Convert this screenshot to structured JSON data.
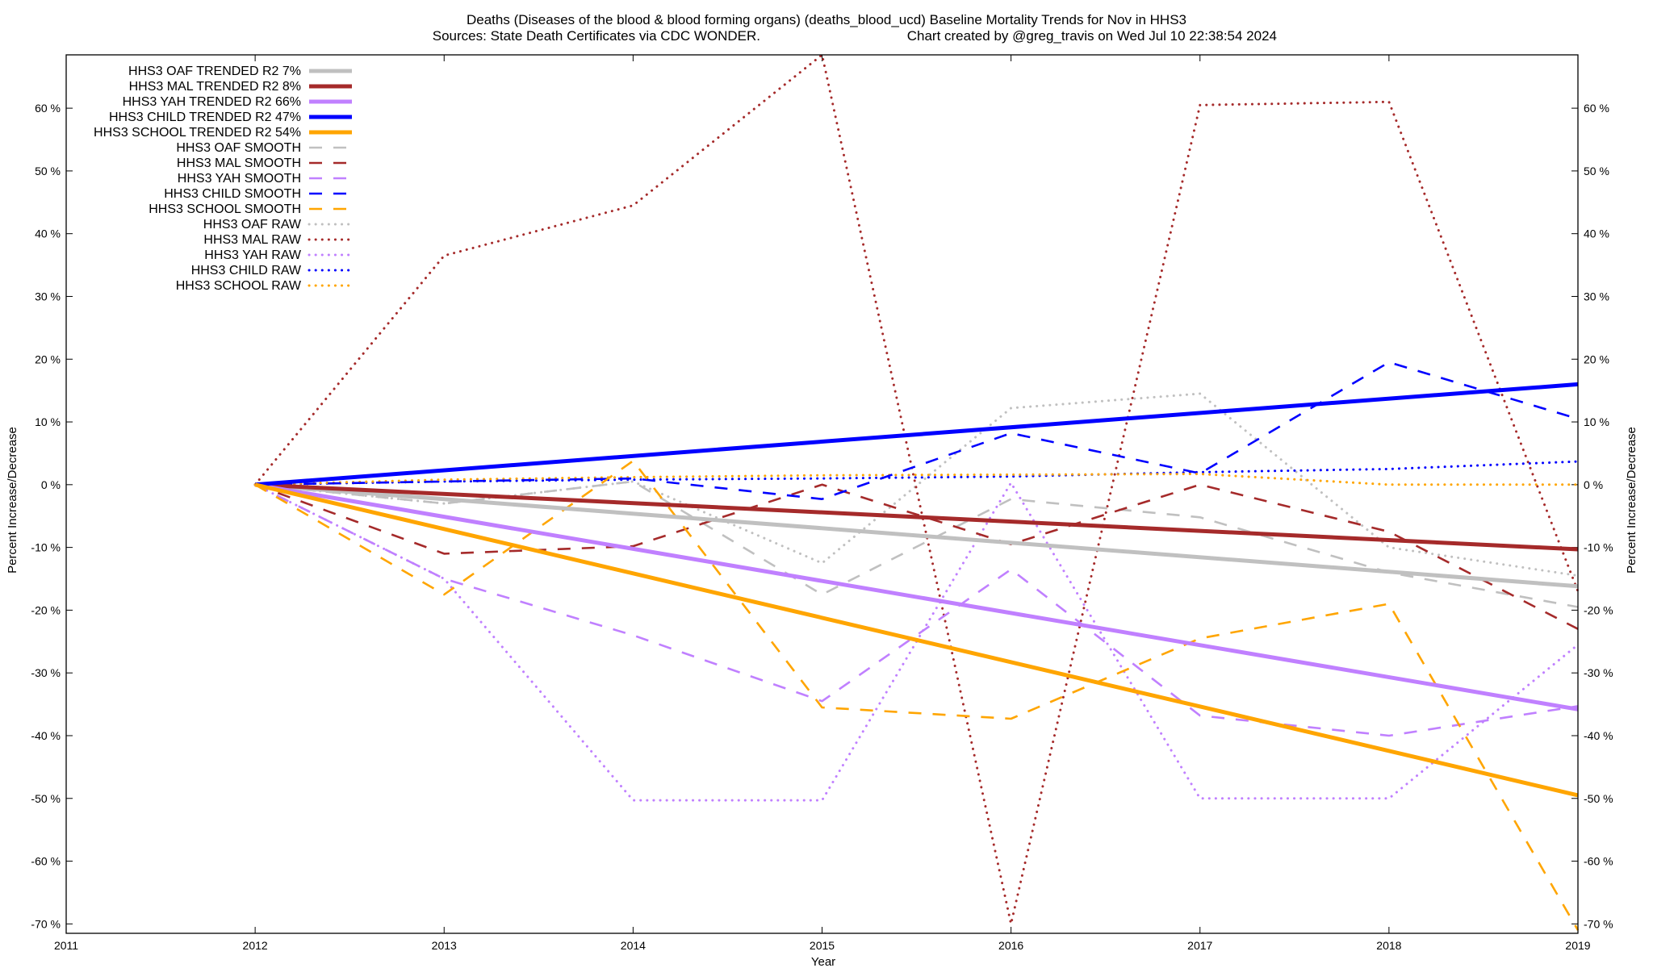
{
  "chart_data": {
    "type": "line",
    "title": "Deaths (Diseases of the blood & blood forming organs) (deaths_blood_ucd)  Baseline Mortality Trends for Nov in HHS3",
    "subtitle_left": "Sources: State Death Certificates via CDC WONDER.",
    "subtitle_right": "Chart created by @greg_travis on Wed Jul 10 22:38:54 2024",
    "xlabel": "Year",
    "ylabel_left": "Percent Increase/Decrease",
    "ylabel_right": "Percent Increase/Decrease",
    "xlim": [
      2011,
      2019
    ],
    "ylim": [
      -71.5,
      68.5
    ],
    "x_ticks": [
      "2011",
      "2012",
      "2013",
      "2014",
      "2015",
      "2016",
      "2017",
      "2018",
      "2019"
    ],
    "y_ticks": [
      "60 %",
      "50 %",
      "40 %",
      "30 %",
      "20 %",
      "10 %",
      "0 %",
      "-10 %",
      "-20 %",
      "-30 %",
      "-40 %",
      "-50 %",
      "-60 %",
      "-70 %"
    ],
    "y_tick_values": [
      60,
      50,
      40,
      30,
      20,
      10,
      0,
      -10,
      -20,
      -30,
      -40,
      -50,
      -60,
      -70
    ],
    "grid": false,
    "legend_position": "top-left",
    "series": [
      {
        "name": "HHS3 OAF TRENDED R2  7%",
        "style": "trend",
        "color": "#c0c0c0",
        "x": [
          2012,
          2019
        ],
        "y": [
          0,
          -16.2
        ]
      },
      {
        "name": "HHS3 MAL TRENDED R2  8%",
        "style": "trend",
        "color": "#a52a2a",
        "x": [
          2012,
          2019
        ],
        "y": [
          0,
          -10.3
        ]
      },
      {
        "name": "HHS3 YAH TRENDED R2  66%",
        "style": "trend",
        "color": "#c080ff",
        "x": [
          2012,
          2019
        ],
        "y": [
          0,
          -35.8
        ]
      },
      {
        "name": "HHS3 CHILD TRENDED R2  47%",
        "style": "trend",
        "color": "#0000ff",
        "x": [
          2012,
          2019
        ],
        "y": [
          0,
          16
        ]
      },
      {
        "name": "HHS3 SCHOOL TRENDED R2  54%",
        "style": "trend",
        "color": "#ffa500",
        "x": [
          2012,
          2019
        ],
        "y": [
          0,
          -49.5
        ]
      },
      {
        "name": "HHS3 OAF SMOOTH",
        "style": "smooth",
        "color": "#c0c0c0",
        "x": [
          2012,
          2013,
          2014,
          2015,
          2016,
          2017,
          2018,
          2019
        ],
        "y": [
          0,
          -3,
          0.5,
          -17.5,
          -2.3,
          -5.2,
          -14,
          -19.5
        ]
      },
      {
        "name": "HHS3 MAL SMOOTH",
        "style": "smooth",
        "color": "#a52a2a",
        "x": [
          2012,
          2013,
          2014,
          2015,
          2016,
          2017,
          2018,
          2019
        ],
        "y": [
          0,
          -11,
          -9.8,
          0,
          -9.5,
          0,
          -7.5,
          -23
        ]
      },
      {
        "name": "HHS3 YAH SMOOTH",
        "style": "smooth",
        "color": "#c080ff",
        "x": [
          2012,
          2013,
          2014,
          2015,
          2016,
          2017,
          2018,
          2019
        ],
        "y": [
          0,
          -15,
          -24,
          -34.5,
          -13.5,
          -36.8,
          -40,
          -35.3
        ]
      },
      {
        "name": "HHS3 CHILD SMOOTH",
        "style": "smooth",
        "color": "#0000ff",
        "x": [
          2012,
          2013,
          2014,
          2015,
          2016,
          2017,
          2018,
          2019
        ],
        "y": [
          0,
          0.5,
          1,
          -2.3,
          8.2,
          1.8,
          19.5,
          10.5
        ]
      },
      {
        "name": "HHS3 SCHOOL SMOOTH",
        "style": "smooth",
        "color": "#ffa500",
        "x": [
          2012,
          2013,
          2014,
          2015,
          2016,
          2017,
          2018,
          2019
        ],
        "y": [
          0,
          -17.5,
          3.8,
          -35.5,
          -37.3,
          -24.5,
          -19,
          -71
        ]
      },
      {
        "name": "HHS3 OAF RAW",
        "style": "raw",
        "color": "#c0c0c0",
        "x": [
          2012,
          2013,
          2014,
          2015,
          2016,
          2017,
          2018,
          2019
        ],
        "y": [
          0,
          -3,
          0.5,
          -12.5,
          12.2,
          14.5,
          -10,
          -14.5
        ]
      },
      {
        "name": "HHS3 MAL RAW",
        "style": "raw",
        "color": "#a52a2a",
        "x": [
          2012,
          2013,
          2014,
          2015,
          2016,
          2017,
          2018,
          2019
        ],
        "y": [
          0,
          36.5,
          44.5,
          68.5,
          -70,
          60.5,
          61,
          -17
        ]
      },
      {
        "name": "HHS3 YAH RAW",
        "style": "raw",
        "color": "#c080ff",
        "x": [
          2012,
          2013,
          2014,
          2015,
          2016,
          2017,
          2018,
          2019
        ],
        "y": [
          0,
          -15,
          -50.3,
          -50.3,
          0.3,
          -50,
          -50,
          -25.5
        ]
      },
      {
        "name": "HHS3 CHILD RAW",
        "style": "raw",
        "color": "#0000ff",
        "x": [
          2012,
          2013,
          2014,
          2015,
          2016,
          2017,
          2018,
          2019
        ],
        "y": [
          0,
          0.5,
          0.8,
          1,
          1.3,
          2,
          2.5,
          3.7
        ]
      },
      {
        "name": "HHS3 SCHOOL RAW",
        "style": "raw",
        "color": "#ffa500",
        "x": [
          2012,
          2013,
          2014,
          2015,
          2016,
          2017,
          2018,
          2019
        ],
        "y": [
          0,
          0.8,
          1.2,
          1.5,
          1.6,
          1.7,
          0,
          0
        ]
      }
    ]
  }
}
